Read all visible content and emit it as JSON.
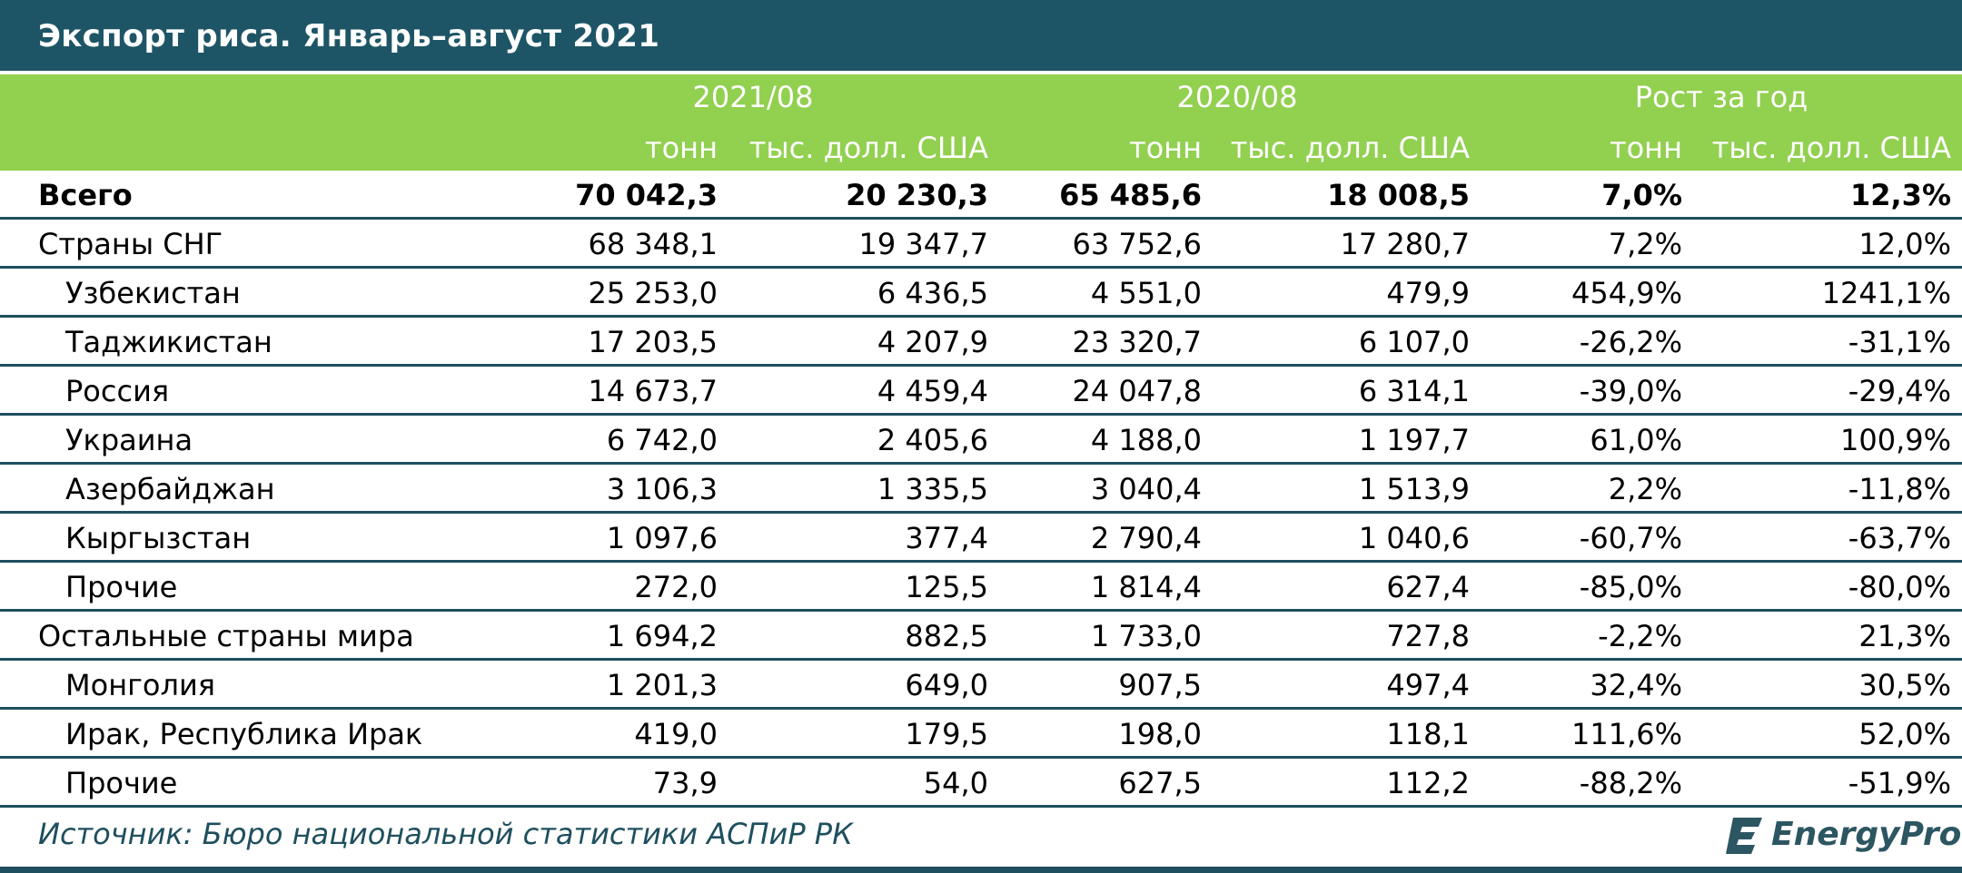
{
  "title": "Экспорт риса. Январь–август 2021",
  "header": {
    "groups": [
      "2021/08",
      "2020/08",
      "Рост за год"
    ],
    "units": [
      "тонн",
      "тыс. долл. США",
      "тонн",
      "тыс. долл. США",
      "тонн",
      "тыс. долл. США"
    ]
  },
  "rows": [
    {
      "name": "Всего",
      "values": [
        "70 042,3",
        "20 230,3",
        "65 485,6",
        "18 008,5",
        "7,0%",
        "12,3%"
      ]
    },
    {
      "name": "Страны СНГ",
      "values": [
        "68 348,1",
        "19 347,7",
        "63 752,6",
        "17 280,7",
        "7,2%",
        "12,0%"
      ]
    },
    {
      "name": "Узбекистан",
      "values": [
        "25 253,0",
        "6 436,5",
        "4 551,0",
        "479,9",
        "454,9%",
        "1241,1%"
      ]
    },
    {
      "name": "Таджикистан",
      "values": [
        "17 203,5",
        "4 207,9",
        "23 320,7",
        "6 107,0",
        "-26,2%",
        "-31,1%"
      ]
    },
    {
      "name": "Россия",
      "values": [
        "14 673,7",
        "4 459,4",
        "24 047,8",
        "6 314,1",
        "-39,0%",
        "-29,4%"
      ]
    },
    {
      "name": "Украина",
      "values": [
        "6 742,0",
        "2 405,6",
        "4 188,0",
        "1 197,7",
        "61,0%",
        "100,9%"
      ]
    },
    {
      "name": "Азербайджан",
      "values": [
        "3 106,3",
        "1 335,5",
        "3 040,4",
        "1 513,9",
        "2,2%",
        "-11,8%"
      ]
    },
    {
      "name": "Кыргызстан",
      "values": [
        "1 097,6",
        "377,4",
        "2 790,4",
        "1 040,6",
        "-60,7%",
        "-63,7%"
      ]
    },
    {
      "name": "Прочие",
      "values": [
        "272,0",
        "125,5",
        "1 814,4",
        "627,4",
        "-85,0%",
        "-80,0%"
      ]
    },
    {
      "name": "Остальные страны мира",
      "values": [
        "1 694,2",
        "882,5",
        "1 733,0",
        "727,8",
        "-2,2%",
        "21,3%"
      ]
    },
    {
      "name": "Монголия",
      "values": [
        "1 201,3",
        "649,0",
        "907,5",
        "497,4",
        "32,4%",
        "30,5%"
      ]
    },
    {
      "name": "Ирак, Республика Ирак",
      "values": [
        "419,0",
        "179,5",
        "198,0",
        "118,1",
        "111,6%",
        "52,0%"
      ]
    },
    {
      "name": "Прочие",
      "values": [
        "73,9",
        "54,0",
        "627,5",
        "112,2",
        "-88,2%",
        "-51,9%"
      ]
    }
  ],
  "source": "Источник: Бюро национальной статистики АСПиР РК",
  "logo_text": "EnergyProm",
  "colors": {
    "title_bg": "#1e5566",
    "header_bg": "#92d050",
    "rule": "#1e4f5e"
  }
}
